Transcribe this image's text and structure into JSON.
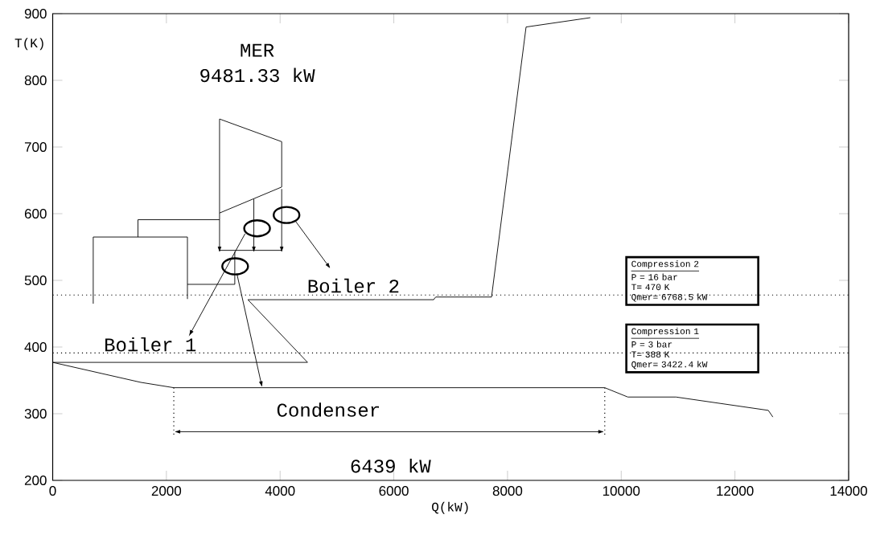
{
  "chart_data": {
    "type": "line",
    "xlabel": "Q(kW)",
    "ylabel": "T(K)",
    "xlim": [
      0,
      14000
    ],
    "ylim": [
      200,
      900
    ],
    "xticks": [
      0,
      2000,
      4000,
      6000,
      8000,
      10000,
      12000,
      14000
    ],
    "yticks": [
      200,
      300,
      400,
      500,
      600,
      700,
      800,
      900
    ],
    "marker": "none",
    "line_style": "solid",
    "series": [
      {
        "color": "#000000",
        "x": [
          9456,
          8326,
          7719,
          6737,
          6700,
          3433,
          4483,
          0,
          1550,
          2130,
          9710,
          10116,
          10963,
          12587,
          12667
        ],
        "values": [
          894,
          880,
          475,
          475,
          471,
          471,
          377,
          377,
          347,
          339,
          339,
          325,
          325,
          305,
          295
        ]
      },
      {
        "color": "#000000",
        "x": [
          713,
          713,
          2370,
          2370
        ],
        "values": [
          465,
          565,
          565,
          472
        ]
      },
      {
        "color": "#000000",
        "x": [
          1500,
          1500,
          2935,
          2935
        ],
        "values": [
          565,
          591,
          591,
          742
        ]
      },
      {
        "color": "#000000",
        "x": [
          2935,
          4028,
          4028,
          2935
        ],
        "values": [
          742,
          708,
          640,
          601
        ]
      },
      {
        "color": "#000000",
        "x": [
          2370,
          3203,
          3203
        ],
        "values": [
          494,
          494,
          543
        ]
      },
      {
        "color": "#000000",
        "x": [
          2935,
          4028
        ],
        "values": [
          545,
          545
        ]
      }
    ],
    "ref_lines": [
      {
        "axis": "y",
        "value": 478,
        "line_style": "dotted"
      },
      {
        "axis": "y",
        "value": 391,
        "line_style": "dotted"
      }
    ],
    "annotations": [
      "MER",
      "9481.33 kW",
      "Boiler 2",
      "Boiler 1",
      "Condenser",
      "6439 kW",
      "Compression 2",
      "P = 16 bar",
      "T= 470 K",
      "Qmer= 6768.5 kW",
      "Compression 1",
      "P = 3 bar",
      "T= 388 K",
      "Qmer= 3422.4 kW"
    ]
  }
}
